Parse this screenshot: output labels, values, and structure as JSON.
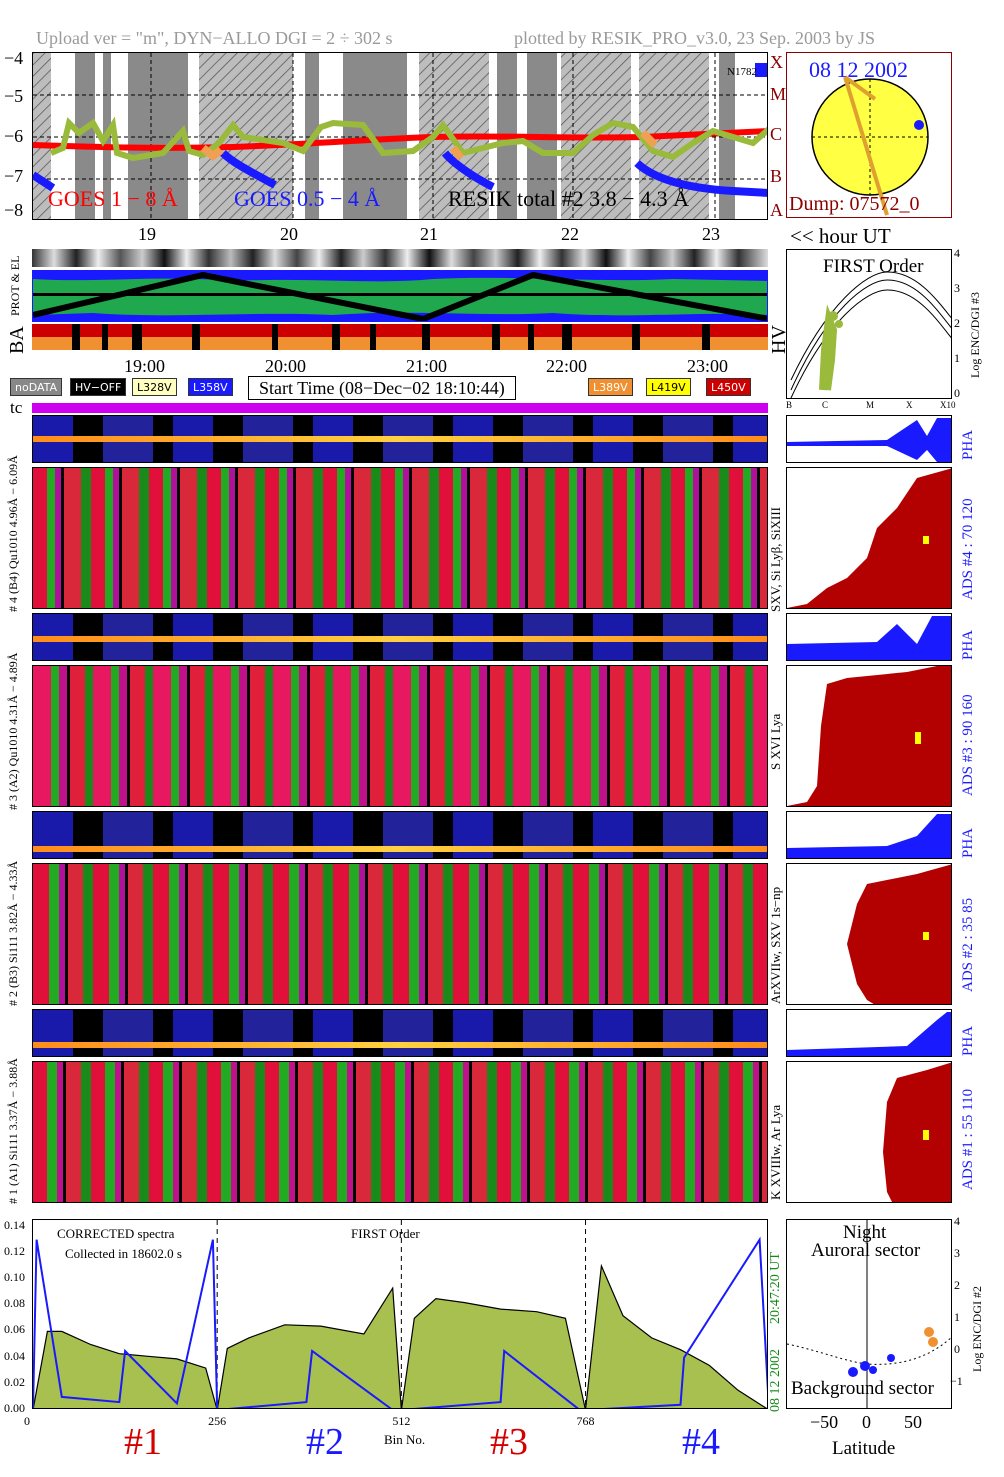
{
  "header": {
    "left": "Upload ver = \"m\", DYN−ALLO DGI =   2 ÷ 302 s",
    "right": "plotted by RESIK_PRO_v3.0, 23 Sep. 2003 by JS"
  },
  "goes": {
    "y_ticks": [
      "−4",
      "−5",
      "−6",
      "−7",
      "−8"
    ],
    "class_letters": [
      "X",
      "M",
      "C",
      "B",
      "A"
    ],
    "legend_goes1": "GOES 1 − 8 Å",
    "legend_goes05": "GOES 0.5 − 4 Å",
    "legend_resik": "RESIK total #2  3.8 − 4.3 Å",
    "marker": "N1782",
    "hours_top": [
      "19",
      "20",
      "21",
      "22",
      "23"
    ],
    "colors": {
      "goes1": "#ff0000",
      "goes05": "#0000ff",
      "resik": "#9aba3c"
    }
  },
  "sun": {
    "date": "08 12 2002",
    "dump": "Dump: 07572_0"
  },
  "hour_ut_label": "<< hour UT",
  "status_strips": {
    "left_label1": "PROT & EL",
    "left_label2": "BA",
    "right_label": "HV"
  },
  "first_order_plot": {
    "title": "FIRST Order",
    "ylabel": "Log ENC/DGI #3",
    "y_ticks": [
      "4",
      "3",
      "2",
      "1",
      "0"
    ],
    "x_ticks": [
      "B",
      "C",
      "M",
      "X",
      "X10"
    ]
  },
  "time_axis": {
    "ticks": [
      "19:00",
      "20:00",
      "21:00",
      "22:00",
      "23:00"
    ]
  },
  "voltage_legend": {
    "nodata": "noDATA",
    "hvoff": "HV−OFF",
    "l328": "L328V",
    "l358": "L358V",
    "start_time": "Start Time (08−Dec−02 18:10:44)",
    "l389": "L389V",
    "l419": "L419V",
    "l450": "L450V"
  },
  "tc_label": "tc",
  "channels": [
    {
      "left_pha": "# 4 (B4) Qu1010 4.96Å − 6.09Å",
      "right_species": "SXV, Si Lyβ, SiXIII",
      "ads": "ADS #4 :   70 120",
      "pha": "PHA"
    },
    {
      "left_pha": "# 3 (A2) Qu1010 4.31Å − 4.89Å",
      "right_species": "S XVI Lya",
      "ads": "ADS #3 :   90 160",
      "pha": "PHA"
    },
    {
      "left_pha": "# 2 (B3) Si111 3.82Å − 4.33Å",
      "right_species": "ArXVIIw, SXV 1s−np",
      "ads": "ADS #2 :   35 85",
      "pha": "PHA"
    },
    {
      "left_pha": "# 1 (A1) Si111 3.37Å − 3.88Å",
      "right_species": "K XVIIIw, Ar Lya",
      "ads": "ADS #1 :   55 110",
      "pha": "PHA"
    }
  ],
  "spectra": {
    "note1": "CORRECTED spectra",
    "note2": "Collected in 18602.0 s",
    "note3": "FIRST Order",
    "right_time": "20:47:20 UT",
    "right_date": "08 12 2002",
    "xlabel": "Bin No.",
    "channel_labels": [
      "#1",
      "#2",
      "#3",
      "#4"
    ],
    "channel_colors": [
      "#d40000",
      "#1a1aff",
      "#d40000",
      "#1a1aff"
    ]
  },
  "latitude_plot": {
    "title1": "Night",
    "title2": "Auroral sector",
    "bottom": "Background sector",
    "xlabel": "Latitude",
    "ylabel": "Log ENC/DGI #2",
    "x_ticks": [
      "−50",
      "0",
      "50"
    ],
    "y_ticks": [
      "4",
      "3",
      "2",
      "1",
      "0",
      "−1"
    ]
  },
  "chart_data": {
    "type": "area",
    "title": "",
    "xlabel": "Bin No.",
    "ylabel": "",
    "xlim": [
      0,
      1023
    ],
    "ylim": [
      0,
      0.145
    ],
    "x_ticks": [
      0,
      256,
      512,
      768
    ],
    "y_ticks": [
      0.0,
      0.02,
      0.04,
      0.06,
      0.08,
      0.1,
      0.12,
      0.14
    ],
    "grid": false,
    "series": [
      {
        "x": [
          0,
          20,
          40,
          80,
          120,
          160,
          200,
          240,
          256,
          270,
          300,
          350,
          400,
          460,
          500,
          512,
          530,
          560,
          600,
          650,
          700,
          740,
          768,
          790,
          820,
          860,
          900,
          940,
          980,
          1023
        ],
        "values": [
          0.0,
          0.06,
          0.06,
          0.05,
          0.043,
          0.041,
          0.039,
          0.032,
          0.0,
          0.047,
          0.055,
          0.065,
          0.064,
          0.058,
          0.093,
          0.0,
          0.07,
          0.085,
          0.082,
          0.077,
          0.075,
          0.07,
          0.0,
          0.11,
          0.072,
          0.055,
          0.046,
          0.034,
          0.015,
          0.0
        ]
      },
      {
        "x": [
          0,
          5,
          40,
          120,
          128,
          200,
          250,
          256,
          380,
          388,
          500,
          512,
          650,
          655,
          760,
          768,
          900,
          905,
          1010,
          1023
        ],
        "values": [
          0.0,
          0.13,
          0.01,
          0.006,
          0.045,
          0.005,
          0.13,
          0.0,
          0.006,
          0.045,
          0.0,
          0.0,
          0.006,
          0.045,
          0.0,
          0.0,
          0.004,
          0.04,
          0.13,
          0.0
        ]
      }
    ]
  }
}
